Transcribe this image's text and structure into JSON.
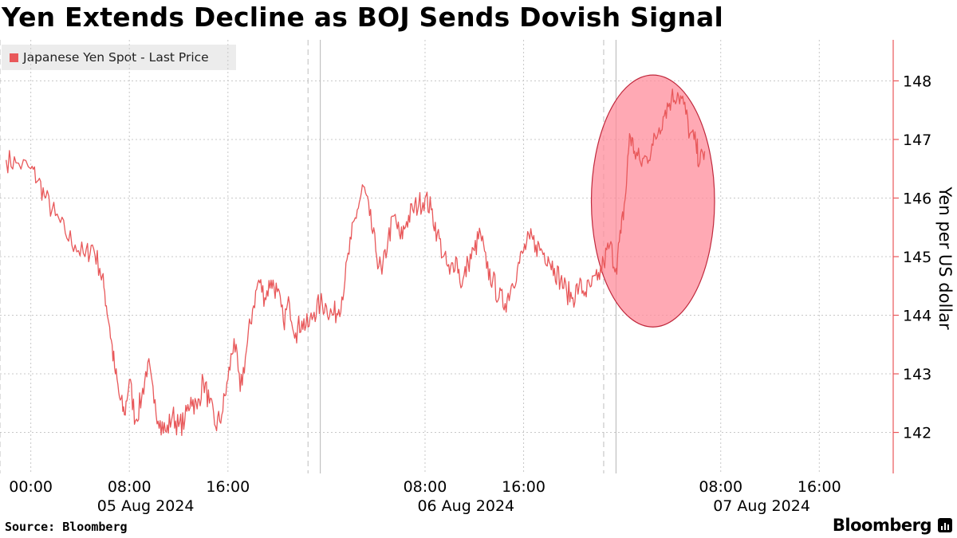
{
  "chart_data": {
    "type": "line",
    "title": "Yen Extends Decline as BOJ Sends Dovish Signal",
    "ylabel": "Yen per US dollar",
    "ylim": [
      141.3,
      148.7
    ],
    "yticks": [
      142,
      143,
      144,
      145,
      146,
      147,
      148
    ],
    "x_range_hours": [
      -2.5,
      70
    ],
    "x_ticks": [
      {
        "hour": 0,
        "label": "00:00"
      },
      {
        "hour": 8,
        "label": "08:00"
      },
      {
        "hour": 16,
        "label": "16:00"
      },
      {
        "hour": 32,
        "label": "08:00"
      },
      {
        "hour": 40,
        "label": "16:00"
      },
      {
        "hour": 56,
        "label": "08:00"
      },
      {
        "hour": 64,
        "label": "16:00"
      }
    ],
    "date_labels": [
      {
        "hour": 9,
        "label": "05 Aug 2024"
      },
      {
        "hour": 35,
        "label": "06 Aug 2024"
      },
      {
        "hour": 59,
        "label": "07 Aug 2024"
      }
    ],
    "series": [
      {
        "name": "Japanese Yen Spot - Last Price",
        "color": "#e8585a",
        "points": [
          [
            -2,
            146.65
          ],
          [
            -1.2,
            146.6
          ],
          [
            0,
            146.5
          ],
          [
            0.6,
            146.3
          ],
          [
            1.2,
            146.0
          ],
          [
            2,
            145.7
          ],
          [
            2.8,
            145.4
          ],
          [
            3.6,
            145.2
          ],
          [
            4.4,
            145.0
          ],
          [
            5,
            145.2
          ],
          [
            5.6,
            144.8
          ],
          [
            6,
            144.4
          ],
          [
            6.4,
            143.8
          ],
          [
            6.8,
            143.1
          ],
          [
            7.2,
            142.6
          ],
          [
            7.6,
            142.3
          ],
          [
            8,
            142.9
          ],
          [
            8.5,
            142.2
          ],
          [
            9,
            142.6
          ],
          [
            9.5,
            143.2
          ],
          [
            10,
            142.5
          ],
          [
            10.5,
            142.2
          ],
          [
            11,
            142.0
          ],
          [
            11.5,
            142.3
          ],
          [
            12,
            142.1
          ],
          [
            12.5,
            142.2
          ],
          [
            13,
            142.6
          ],
          [
            13.5,
            142.4
          ],
          [
            14,
            142.9
          ],
          [
            14.5,
            142.5
          ],
          [
            15,
            142.1
          ],
          [
            15.5,
            142.3
          ],
          [
            16,
            142.9
          ],
          [
            16.5,
            143.6
          ],
          [
            17,
            142.7
          ],
          [
            17.5,
            143.4
          ],
          [
            18,
            144.1
          ],
          [
            18.5,
            144.6
          ],
          [
            19,
            144.3
          ],
          [
            19.5,
            144.6
          ],
          [
            20,
            144.4
          ],
          [
            20.5,
            143.9
          ],
          [
            21,
            144.2
          ],
          [
            21.5,
            143.7
          ],
          [
            22,
            143.9
          ],
          [
            22.5,
            143.8
          ],
          [
            23,
            144.05
          ],
          [
            23.5,
            144.2
          ],
          [
            24,
            144.15
          ],
          [
            24.5,
            144.0
          ],
          [
            25,
            144.1
          ],
          [
            25.5,
            144.6
          ],
          [
            26,
            145.3
          ],
          [
            26.5,
            145.8
          ],
          [
            27,
            146.2
          ],
          [
            27.5,
            145.7
          ],
          [
            28,
            145.1
          ],
          [
            28.5,
            144.7
          ],
          [
            29,
            145.3
          ],
          [
            29.5,
            145.7
          ],
          [
            30,
            145.3
          ],
          [
            30.5,
            145.6
          ],
          [
            31,
            145.8
          ],
          [
            31.5,
            145.9
          ],
          [
            32,
            146.0
          ],
          [
            32.5,
            145.8
          ],
          [
            33,
            145.4
          ],
          [
            33.5,
            145.0
          ],
          [
            34,
            144.7
          ],
          [
            34.5,
            145.0
          ],
          [
            35,
            144.5
          ],
          [
            35.5,
            144.9
          ],
          [
            36,
            145.1
          ],
          [
            36.5,
            145.4
          ],
          [
            37,
            144.8
          ],
          [
            37.5,
            144.6
          ],
          [
            38,
            144.3
          ],
          [
            38.5,
            144.2
          ],
          [
            39,
            144.5
          ],
          [
            39.5,
            144.8
          ],
          [
            40,
            145.1
          ],
          [
            40.5,
            145.3
          ],
          [
            41,
            145.2
          ],
          [
            41.5,
            145.1
          ],
          [
            42,
            145.0
          ],
          [
            42.5,
            144.8
          ],
          [
            43,
            144.6
          ],
          [
            43.5,
            144.4
          ],
          [
            44,
            144.3
          ],
          [
            44.5,
            144.5
          ],
          [
            45,
            144.4
          ],
          [
            45.5,
            144.5
          ],
          [
            46,
            144.6
          ],
          [
            46.5,
            144.9
          ],
          [
            47,
            145.2
          ],
          [
            47.5,
            144.8
          ],
          [
            47.9,
            145.4
          ],
          [
            48.3,
            146.1
          ],
          [
            48.6,
            147.1
          ],
          [
            49,
            146.8
          ],
          [
            49.5,
            146.6
          ],
          [
            50,
            146.7
          ],
          [
            50.5,
            146.9
          ],
          [
            51,
            147.2
          ],
          [
            51.5,
            147.5
          ],
          [
            52,
            147.7
          ],
          [
            52.5,
            147.8
          ],
          [
            53,
            147.6
          ],
          [
            53.5,
            147.1
          ],
          [
            54,
            146.9
          ],
          [
            54.3,
            146.6
          ],
          [
            54.7,
            146.8
          ]
        ]
      }
    ],
    "session_dividers_hours": [
      -2.5,
      22.5,
      23.5,
      46.5,
      47.5
    ],
    "highlight": {
      "center_hour": 50.5,
      "center_value": 145.95,
      "radius_hours": 5.0,
      "radius_value": 2.15,
      "color": "#ff8c9b"
    },
    "axis_color": "#e8585a",
    "grid": true
  },
  "legend_label": "Japanese Yen Spot - Last Price",
  "source": "Source: Bloomberg",
  "brand": "Bloomberg"
}
